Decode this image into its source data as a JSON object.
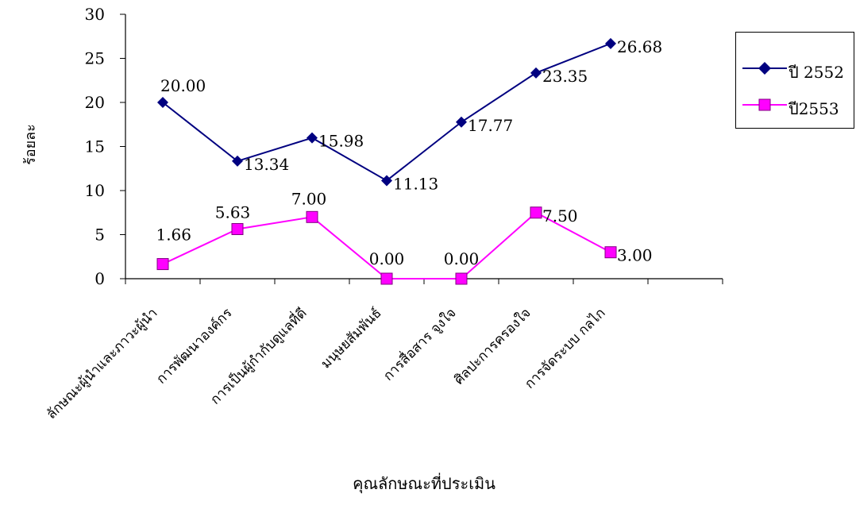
{
  "chart_data": {
    "type": "line",
    "title": "",
    "xlabel": "คุณลักษณะที่ประเมิน",
    "ylabel": "ร้อยละ",
    "ylim": [
      0,
      30
    ],
    "yticks": [
      0,
      5,
      10,
      15,
      20,
      25,
      30
    ],
    "grid": false,
    "legend_position": "right",
    "categories": [
      "ลักษณะผู้นำและภาวะผู้นำ",
      "การพัฒนาองค์กร",
      "การเป็นผู้กำกับดูแลที่ดี",
      "มนุษยสัมพันธ์",
      "การสื่อสาร จูงใจ",
      "ศิลปะการครองใจ",
      "การจัดระบบ กลไก"
    ],
    "series": [
      {
        "name": "ปี 2552",
        "color": "#000080",
        "marker": "diamond",
        "values": [
          20.0,
          13.34,
          15.98,
          11.13,
          17.77,
          23.35,
          26.68
        ],
        "labels": [
          "20.00",
          "13.34",
          "15.98",
          "11.13",
          "17.77",
          "23.35",
          "26.68"
        ]
      },
      {
        "name": "ปี2553",
        "color": "#FF00FF",
        "marker": "square",
        "values": [
          1.66,
          5.63,
          7.0,
          0.0,
          0.0,
          7.5,
          3.0
        ],
        "labels": [
          "1.66",
          "5.63",
          "7.00",
          "0.00",
          "0.00",
          "7.50",
          "3.00"
        ]
      }
    ]
  }
}
